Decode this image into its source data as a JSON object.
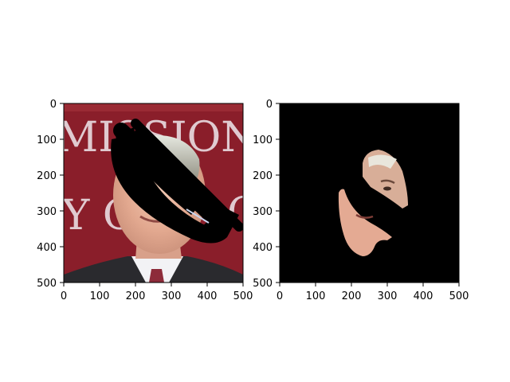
{
  "figure": {
    "panels": [
      {
        "name": "original-with-mask-overlay",
        "image_text": "MISSION YO",
        "x_ticks": [
          "0",
          "100",
          "200",
          "300",
          "400",
          "500"
        ],
        "y_ticks": [
          "0",
          "100",
          "200",
          "300",
          "400",
          "500"
        ]
      },
      {
        "name": "masked-face-extract",
        "x_ticks": [
          "0",
          "100",
          "200",
          "300",
          "400",
          "500"
        ],
        "y_ticks": [
          "0",
          "100",
          "200",
          "300",
          "400",
          "500"
        ]
      }
    ]
  }
}
